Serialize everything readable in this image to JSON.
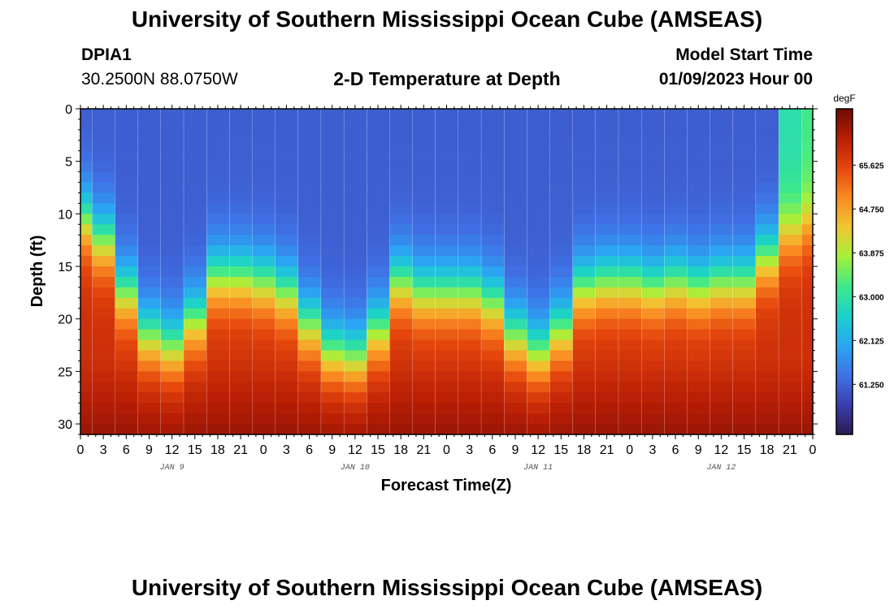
{
  "header": {
    "title": "University of Southern Mississippi Ocean Cube (AMSEAS)",
    "station_id": "DPIA1",
    "station_coords": "30.2500N  88.0750W",
    "subtitle": "2-D Temperature at Depth",
    "model_start_label": "Model Start Time",
    "model_start_value": "01/09/2023 Hour 00"
  },
  "footer": {
    "title": "University of Southern Mississippi Ocean Cube (AMSEAS)"
  },
  "chart_data": {
    "type": "heatmap",
    "title": "2-D Temperature at Depth",
    "xlabel": "Forecast Time(Z)",
    "ylabel": "Depth (ft)",
    "x_hours_range": [
      0,
      96
    ],
    "x_tick_step_hours": 3,
    "x_tick_labels": [
      "0",
      "3",
      "6",
      "9",
      "12",
      "15",
      "18",
      "21",
      "0",
      "3",
      "6",
      "9",
      "12",
      "15",
      "18",
      "21",
      "0",
      "3",
      "6",
      "9",
      "12",
      "15",
      "18",
      "21",
      "0",
      "3",
      "6",
      "9",
      "12",
      "15",
      "18",
      "21",
      "0"
    ],
    "date_labels": [
      {
        "text": "JAN 9",
        "hour": 12
      },
      {
        "text": "JAN 10",
        "hour": 36
      },
      {
        "text": "JAN 11",
        "hour": 60
      },
      {
        "text": "JAN 12",
        "hour": 84
      }
    ],
    "y_range_ft": [
      0,
      31
    ],
    "y_tick_values": [
      0,
      5,
      10,
      15,
      20,
      25,
      30
    ],
    "y_tick_labels": [
      "0",
      "5",
      "10",
      "15",
      "20",
      "25",
      "30"
    ],
    "thermocline_depth_ft": {
      "hours": [
        0,
        3,
        6,
        9,
        12,
        15,
        18,
        21,
        24,
        27,
        30,
        33,
        36,
        39,
        42,
        45,
        48,
        51,
        54,
        57,
        60,
        63,
        66,
        69,
        72,
        75,
        78,
        81,
        84,
        87,
        90,
        93,
        96
      ],
      "depth": [
        10.5,
        12.5,
        17.5,
        21.5,
        22.5,
        20,
        16,
        16,
        16.5,
        17.5,
        20.5,
        23,
        23.5,
        21,
        16.5,
        17.5,
        17.5,
        17.5,
        18.5,
        21.5,
        23,
        21,
        17,
        16.5,
        16.5,
        17,
        16.5,
        17,
        16.5,
        16.5,
        14,
        12,
        11
      ]
    },
    "colorbar": {
      "unit": "degF",
      "range": [
        60.25,
        66.75
      ],
      "tick_values": [
        61.25,
        62.125,
        63.0,
        63.875,
        64.75,
        65.625
      ],
      "tick_labels": [
        "61.250",
        "62.125",
        "63.000",
        "63.875",
        "64.750",
        "65.625"
      ],
      "colors": [
        "#2c1b51",
        "#3b3eae",
        "#3f73e6",
        "#2aa6f2",
        "#1bd1cc",
        "#3fe98b",
        "#a5f03a",
        "#f0c632",
        "#fa8a22",
        "#e5460d",
        "#b81e05",
        "#6d0b04"
      ]
    }
  }
}
